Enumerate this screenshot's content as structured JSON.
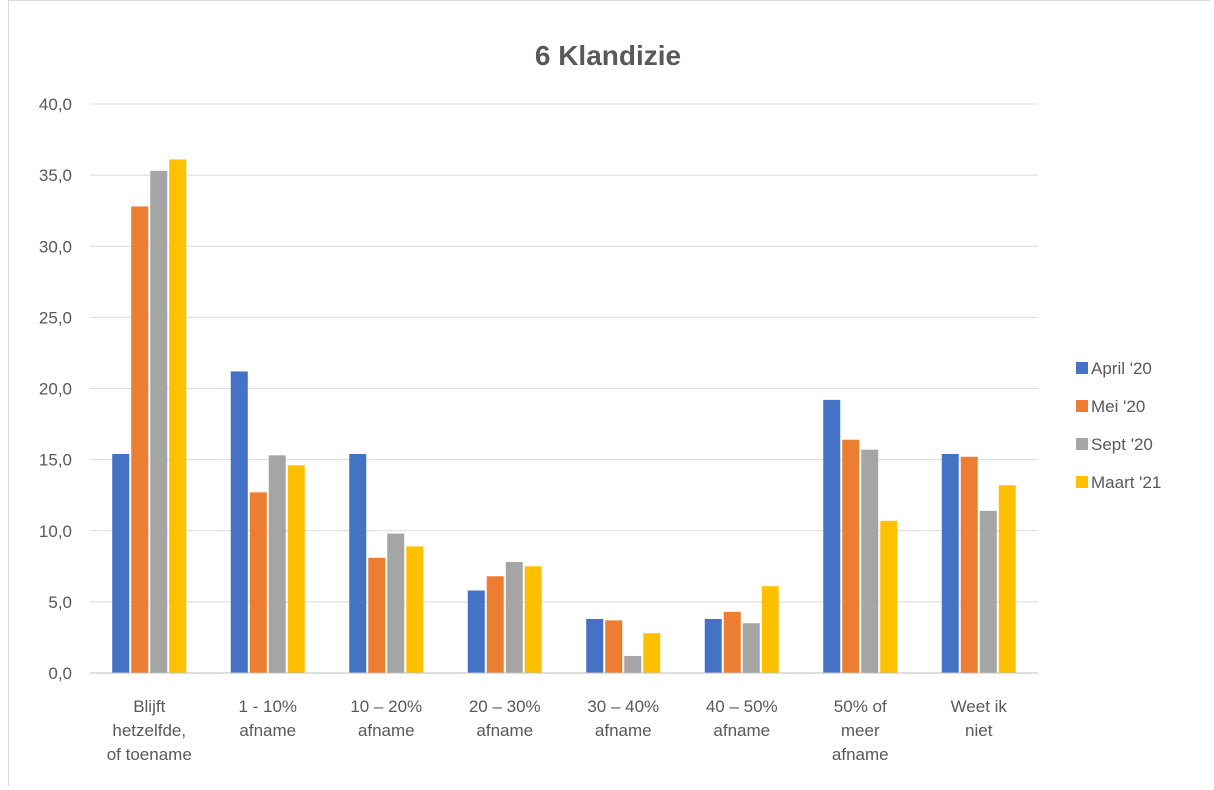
{
  "chart_data": {
    "type": "bar",
    "title": "6 Klandizie",
    "xlabel": "",
    "ylabel": "",
    "ylim": [
      0,
      40
    ],
    "yticks": [
      "0,0",
      "5,0",
      "10,0",
      "15,0",
      "20,0",
      "25,0",
      "30,0",
      "35,0",
      "40,0"
    ],
    "grid": true,
    "legend_position": "right",
    "categories": [
      [
        "Blijft",
        "hetzelfde,",
        "of toename"
      ],
      [
        "1 - 10%",
        "afname"
      ],
      [
        "10 – 20%",
        "afname"
      ],
      [
        "20 – 30%",
        "afname"
      ],
      [
        "30 – 40%",
        "afname"
      ],
      [
        "40 – 50%",
        "afname"
      ],
      [
        "50% of",
        "meer",
        "afname"
      ],
      [
        "Weet ik",
        "niet"
      ]
    ],
    "series": [
      {
        "name": "April '20",
        "color": "#4472c4",
        "values": [
          15.4,
          21.2,
          15.4,
          5.8,
          3.8,
          3.8,
          19.2,
          15.4
        ]
      },
      {
        "name": "Mei '20",
        "color": "#ed7d31",
        "values": [
          32.8,
          12.7,
          8.1,
          6.8,
          3.7,
          4.3,
          16.4,
          15.2
        ]
      },
      {
        "name": "Sept '20",
        "color": "#a5a5a5",
        "values": [
          35.3,
          15.3,
          9.8,
          7.8,
          1.2,
          3.5,
          15.7,
          11.4
        ]
      },
      {
        "name": "Maart '21",
        "color": "#ffc000",
        "values": [
          36.1,
          14.6,
          8.9,
          7.5,
          2.8,
          6.1,
          10.7,
          13.2
        ]
      }
    ]
  }
}
